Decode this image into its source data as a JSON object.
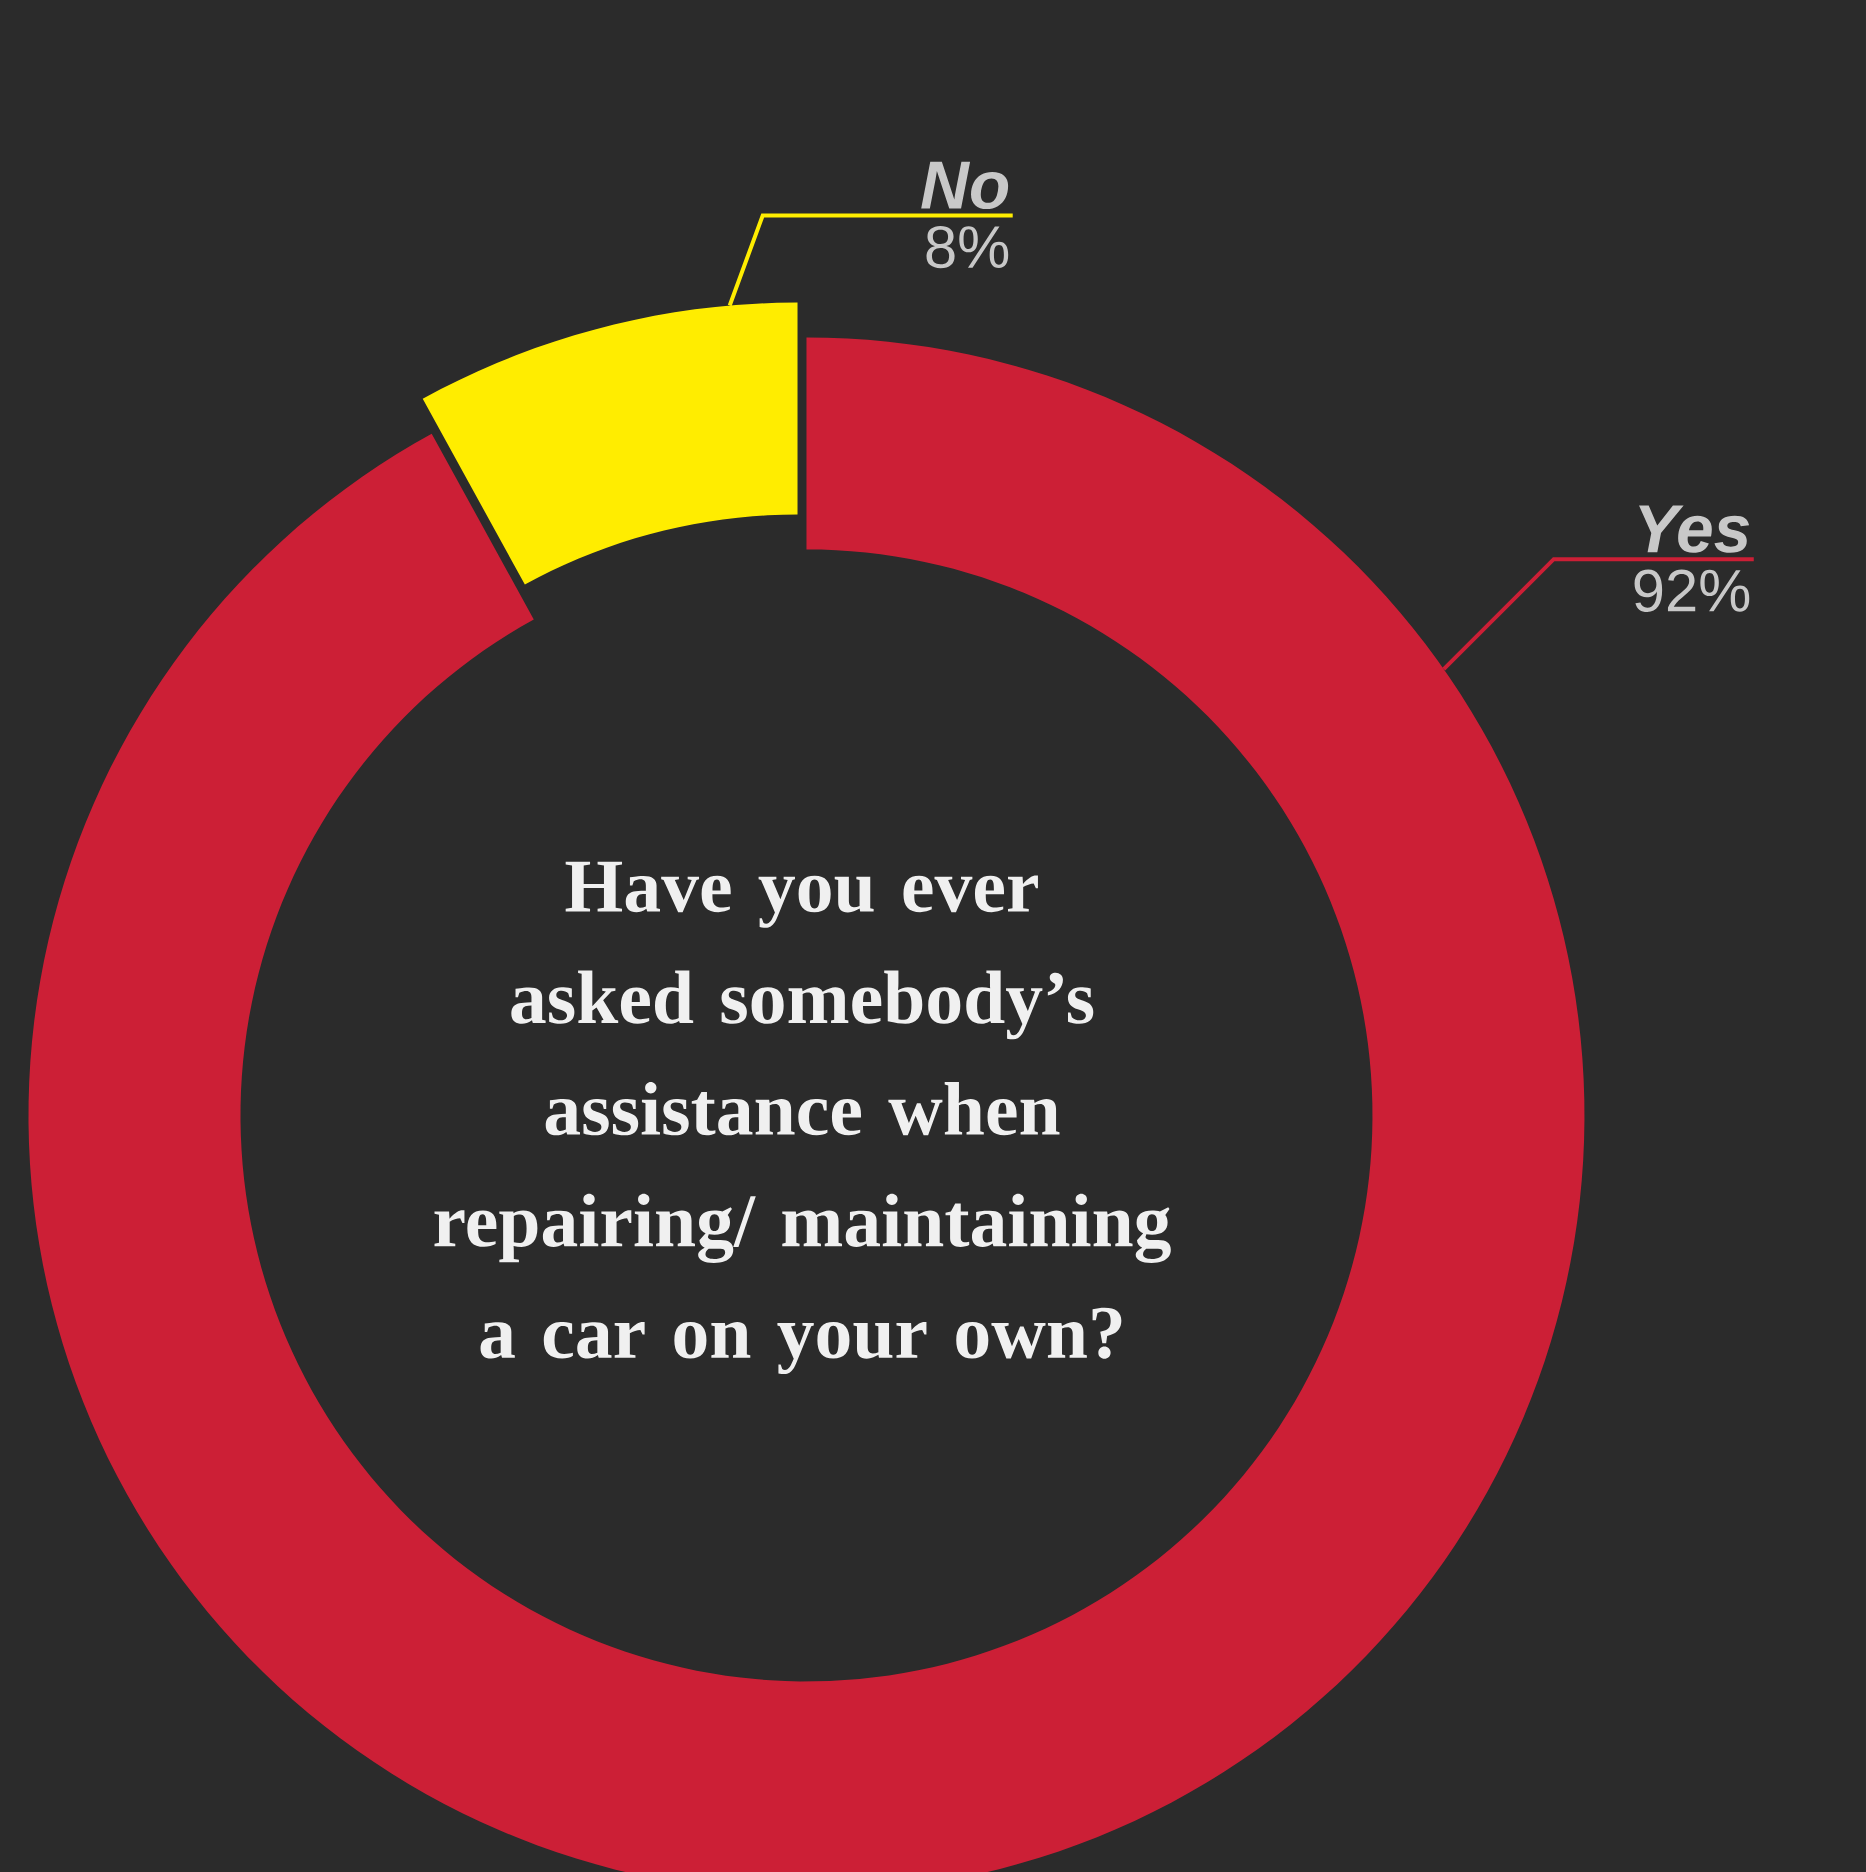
{
  "chart_data": {
    "type": "donut",
    "title": "Have you ever asked somebody’s assistance when repairing/ maintaining a car on your own?",
    "categories": [
      "No",
      "Yes"
    ],
    "values": [
      8,
      92
    ],
    "colors": [
      "#ffed00",
      "#cc1f36"
    ],
    "value_labels": [
      "8%",
      "92%"
    ]
  }
}
